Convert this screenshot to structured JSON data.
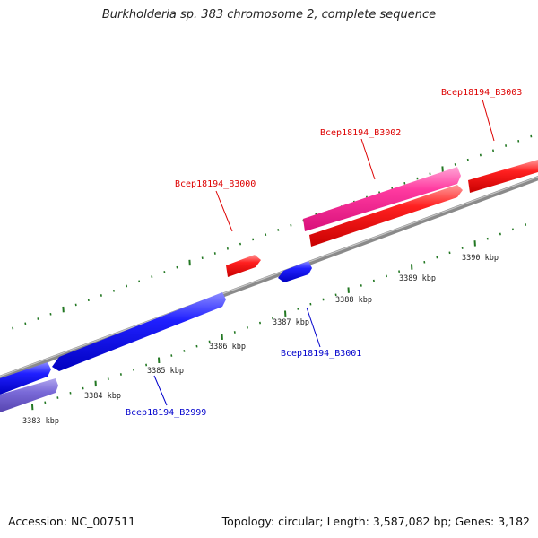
{
  "title": "Burkholderia sp. 383 chromosome 2, complete sequence",
  "footer": {
    "accession": "Accession: NC_007511",
    "summary": "Topology: circular; Length: 3,587,082 bp; Genes: 3,182"
  },
  "scale": {
    "ticks": [
      "3383 kbp",
      "3384 kbp",
      "3385 kbp",
      "3386 kbp",
      "3387 kbp",
      "3388 kbp",
      "3389 kbp",
      "3390 kbp"
    ]
  },
  "genes": [
    {
      "label": "Bcep18194_B2999",
      "color": "#0000ee",
      "strand": "reverse"
    },
    {
      "label": "Bcep18194_B3000",
      "color": "#dd0000",
      "strand": "forward"
    },
    {
      "label": "Bcep18194_B3001",
      "color": "#0000ee",
      "strand": "reverse"
    },
    {
      "label": "Bcep18194_B3002",
      "color": "#dd0000",
      "strand": "forward"
    },
    {
      "label": "Bcep18194_B3003",
      "color": "#dd0000",
      "strand": "forward"
    }
  ],
  "colors": {
    "forward": "#ff1a1a",
    "forward_pink": "#ff3399",
    "reverse": "#1a1aff",
    "reverse_light": "#7766cc",
    "backbone": "#888888",
    "tick": "#227722"
  }
}
